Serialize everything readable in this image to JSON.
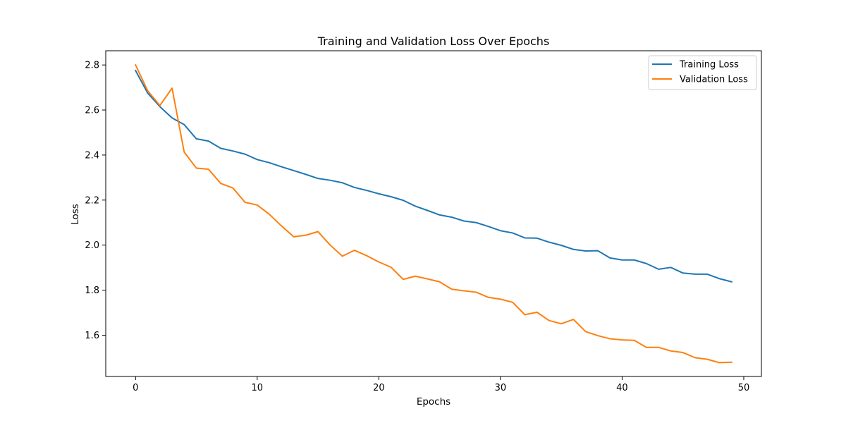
{
  "chart_data": {
    "type": "line",
    "title": "Training and Validation Loss Over Epochs",
    "xlabel": "Epochs",
    "ylabel": "Loss",
    "xlim": [
      -2.45,
      51.45
    ],
    "ylim": [
      1.4167,
      2.8631
    ],
    "xticks": [
      0,
      10,
      20,
      30,
      40,
      50
    ],
    "yticks": [
      1.6,
      1.8,
      2.0,
      2.2,
      2.4,
      2.6,
      2.8
    ],
    "xtick_labels": [
      "0",
      "10",
      "20",
      "30",
      "40",
      "50"
    ],
    "ytick_labels": [
      "1.6",
      "1.8",
      "2.0",
      "2.2",
      "2.4",
      "2.6",
      "2.8"
    ],
    "grid": false,
    "legend_position": "upper-right",
    "x": [
      0,
      1,
      2,
      3,
      4,
      5,
      6,
      7,
      8,
      9,
      10,
      11,
      12,
      13,
      14,
      15,
      16,
      17,
      18,
      19,
      20,
      21,
      22,
      23,
      24,
      25,
      26,
      27,
      28,
      29,
      30,
      31,
      32,
      33,
      34,
      35,
      36,
      37,
      38,
      39,
      40,
      41,
      42,
      43,
      44,
      45,
      46,
      47,
      48,
      49
    ],
    "series": [
      {
        "name": "Training Loss",
        "color": "#1f77b4",
        "values": [
          2.775,
          2.675,
          2.615,
          2.565,
          2.535,
          2.472,
          2.462,
          2.43,
          2.418,
          2.404,
          2.38,
          2.366,
          2.348,
          2.331,
          2.314,
          2.296,
          2.288,
          2.277,
          2.256,
          2.243,
          2.228,
          2.215,
          2.199,
          2.173,
          2.154,
          2.134,
          2.124,
          2.107,
          2.1,
          2.083,
          2.064,
          2.054,
          2.032,
          2.031,
          2.013,
          1.999,
          1.981,
          1.974,
          1.975,
          1.943,
          1.934,
          1.934,
          1.918,
          1.893,
          1.901,
          1.876,
          1.871,
          1.871,
          1.851,
          1.837
        ]
      },
      {
        "name": "Validation Loss",
        "color": "#ff7f0e",
        "values": [
          2.8,
          2.685,
          2.62,
          2.697,
          2.413,
          2.342,
          2.337,
          2.274,
          2.254,
          2.19,
          2.178,
          2.137,
          2.085,
          2.037,
          2.044,
          2.06,
          2.0,
          1.951,
          1.977,
          1.953,
          1.925,
          1.902,
          1.848,
          1.862,
          1.85,
          1.837,
          1.804,
          1.797,
          1.791,
          1.768,
          1.76,
          1.746,
          1.691,
          1.702,
          1.665,
          1.651,
          1.67,
          1.616,
          1.598,
          1.584,
          1.579,
          1.577,
          1.546,
          1.546,
          1.53,
          1.523,
          1.5,
          1.493,
          1.478,
          1.48
        ]
      }
    ]
  }
}
